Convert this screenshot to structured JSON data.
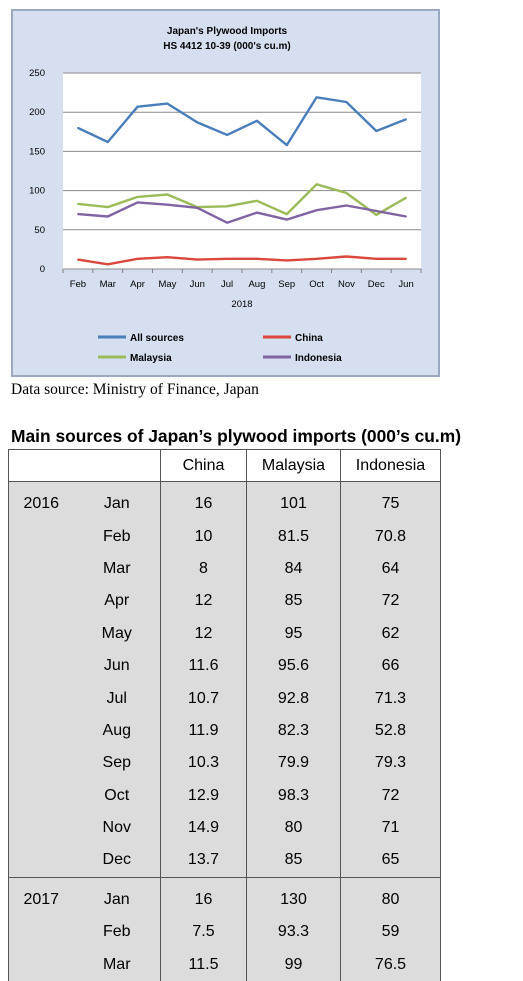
{
  "chart_data": {
    "type": "line",
    "title": "Japan's Plywood Imports",
    "subtitle": "HS 4412 10-39  (000's cu.m)",
    "categories": [
      "Feb",
      "Mar",
      "Apr",
      "May",
      "Jun",
      "Jul",
      "Aug",
      "Sep",
      "Oct",
      "Nov",
      "Dec",
      "Jun"
    ],
    "year_label": "2018",
    "ylim": [
      0,
      250
    ],
    "yticks": [
      0,
      50,
      100,
      150,
      200,
      250
    ],
    "grid": true,
    "legend_placement": "bottom",
    "series": [
      {
        "name": "All sources",
        "color": "#4a7ebb",
        "values": [
          180,
          162,
          207,
          211,
          187,
          171,
          189,
          158,
          219,
          213,
          176,
          191
        ]
      },
      {
        "name": "China",
        "color": "#d9483b",
        "values": [
          12,
          6,
          13,
          15,
          12,
          13,
          13,
          11,
          13,
          16,
          13,
          13
        ]
      },
      {
        "name": "Malaysia",
        "color": "#9bbb59",
        "values": [
          83,
          79,
          92,
          95,
          79,
          80,
          87,
          70,
          108,
          97,
          69,
          91
        ]
      },
      {
        "name": "Indonesia",
        "color": "#8064a2",
        "values": [
          70,
          67,
          85,
          82,
          78,
          59,
          72,
          63,
          75,
          81,
          74,
          67
        ]
      }
    ]
  },
  "source_note": "Data source: Ministry of Finance, Japan",
  "table": {
    "title": "Main sources of Japan’s plywood imports (000’s cu.m)",
    "headers": [
      "",
      "China",
      "Malaysia",
      "Indonesia"
    ],
    "groups": [
      {
        "year": "2016",
        "rows": [
          {
            "month": "Jan",
            "china": "16",
            "malaysia": "101",
            "indonesia": "75"
          },
          {
            "month": "Feb",
            "china": "10",
            "malaysia": "81.5",
            "indonesia": "70.8"
          },
          {
            "month": "Mar",
            "china": "8",
            "malaysia": "84",
            "indonesia": "64"
          },
          {
            "month": "Apr",
            "china": "12",
            "malaysia": "85",
            "indonesia": "72"
          },
          {
            "month": "May",
            "china": "12",
            "malaysia": "95",
            "indonesia": "62"
          },
          {
            "month": "Jun",
            "china": "11.6",
            "malaysia": "95.6",
            "indonesia": "66"
          },
          {
            "month": "Jul",
            "china": "10.7",
            "malaysia": "92.8",
            "indonesia": "71.3"
          },
          {
            "month": "Aug",
            "china": "11.9",
            "malaysia": "82.3",
            "indonesia": "52.8"
          },
          {
            "month": "Sep",
            "china": "10.3",
            "malaysia": "79.9",
            "indonesia": "79.3"
          },
          {
            "month": "Oct",
            "china": "12.9",
            "malaysia": "98.3",
            "indonesia": "72"
          },
          {
            "month": "Nov",
            "china": "14.9",
            "malaysia": "80",
            "indonesia": "71"
          },
          {
            "month": "Dec",
            "china": "13.7",
            "malaysia": "85",
            "indonesia": "65"
          }
        ]
      },
      {
        "year": "2017",
        "rows": [
          {
            "month": "Jan",
            "china": "16",
            "malaysia": "130",
            "indonesia": "80"
          },
          {
            "month": "Feb",
            "china": "7.5",
            "malaysia": "93.3",
            "indonesia": "59"
          },
          {
            "month": "Mar",
            "china": "11.5",
            "malaysia": "99",
            "indonesia": "76.5"
          }
        ]
      }
    ]
  }
}
